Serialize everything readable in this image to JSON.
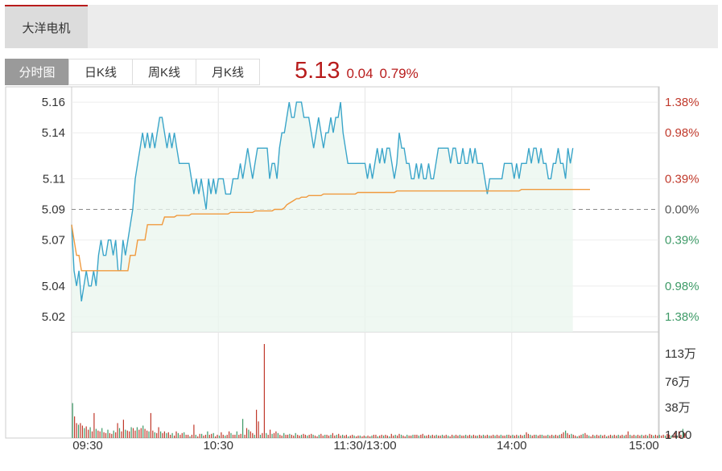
{
  "stock_tab": {
    "name": "大洋电机"
  },
  "tabs": [
    {
      "label": "分时图",
      "active": true
    },
    {
      "label": "日K线",
      "active": false
    },
    {
      "label": "周K线",
      "active": false
    },
    {
      "label": "月K线",
      "active": false
    }
  ],
  "quote": {
    "price": "5.13",
    "change": "0.04",
    "change_pct": "0.79%"
  },
  "colors": {
    "up": "#c0392b",
    "down": "#3e9a67",
    "price_line": "#3aa5c9",
    "avg_line": "#f09a3e",
    "accent": "#b81c1c"
  },
  "chart_data": {
    "type": "line",
    "time_axis": [
      "09:30",
      "10:30",
      "11:30/13:00",
      "14:00",
      "15:00"
    ],
    "price_ticks": [
      "5.16",
      "5.14",
      "5.11",
      "5.09",
      "5.07",
      "5.04",
      "5.02"
    ],
    "pct_ticks": [
      "1.38%",
      "0.98%",
      "0.39%",
      "0.00%",
      "0.39%",
      "0.98%",
      "1.38%"
    ],
    "volume_ticks": [
      "113万",
      "76万",
      "38万",
      "1400"
    ],
    "prev_close": 5.09,
    "ylim": [
      5.01,
      5.17
    ],
    "volume_max": 1130000,
    "price_series": [
      5.08,
      5.05,
      5.04,
      5.05,
      5.03,
      5.04,
      5.05,
      5.04,
      5.04,
      5.05,
      5.04,
      5.06,
      5.07,
      5.06,
      5.06,
      5.07,
      5.07,
      5.06,
      5.07,
      5.05,
      5.05,
      5.07,
      5.06,
      5.07,
      5.08,
      5.09,
      5.11,
      5.12,
      5.13,
      5.14,
      5.13,
      5.14,
      5.13,
      5.14,
      5.13,
      5.14,
      5.15,
      5.15,
      5.14,
      5.13,
      5.14,
      5.13,
      5.14,
      5.13,
      5.12,
      5.12,
      5.12,
      5.12,
      5.12,
      5.11,
      5.1,
      5.11,
      5.1,
      5.11,
      5.1,
      5.09,
      5.11,
      5.1,
      5.11,
      5.1,
      5.11,
      5.11,
      5.11,
      5.1,
      5.1,
      5.1,
      5.11,
      5.11,
      5.11,
      5.12,
      5.11,
      5.12,
      5.13,
      5.12,
      5.11,
      5.12,
      5.13,
      5.13,
      5.13,
      5.13,
      5.13,
      5.11,
      5.12,
      5.12,
      5.11,
      5.13,
      5.14,
      5.14,
      5.15,
      5.16,
      5.15,
      5.15,
      5.16,
      5.16,
      5.16,
      5.15,
      5.15,
      5.15,
      5.14,
      5.13,
      5.14,
      5.15,
      5.14,
      5.13,
      5.14,
      5.14,
      5.15,
      5.14,
      5.15,
      5.15,
      5.16,
      5.14,
      5.13,
      5.12,
      5.12,
      5.12,
      5.12,
      5.12,
      5.12,
      5.12,
      5.12,
      5.11,
      5.12,
      5.11,
      5.12,
      5.13,
      5.12,
      5.13,
      5.12,
      5.13,
      5.13,
      5.12,
      5.11,
      5.12,
      5.14,
      5.13,
      5.13,
      5.12,
      5.12,
      5.11,
      5.11,
      5.12,
      5.11,
      5.12,
      5.11,
      5.11,
      5.12,
      5.11,
      5.11,
      5.12,
      5.13,
      5.13,
      5.13,
      5.13,
      5.13,
      5.12,
      5.13,
      5.13,
      5.12,
      5.12,
      5.13,
      5.12,
      5.12,
      5.13,
      5.12,
      5.13,
      5.12,
      5.12,
      5.12,
      5.11,
      5.1,
      5.11,
      5.11,
      5.11,
      5.11,
      5.11,
      5.11,
      5.12,
      5.12,
      5.12,
      5.12,
      5.11,
      5.12,
      5.11,
      5.12,
      5.12,
      5.12,
      5.13,
      5.12,
      5.13,
      5.13,
      5.12,
      5.13,
      5.12,
      5.12,
      5.11,
      5.11,
      5.12,
      5.12,
      5.13,
      5.12,
      5.12,
      5.11,
      5.13,
      5.12,
      5.13
    ],
    "avg_series": [
      5.08,
      5.07,
      5.06,
      5.06,
      5.05,
      5.05,
      5.05,
      5.05,
      5.05,
      5.05,
      5.05,
      5.05,
      5.05,
      5.05,
      5.05,
      5.05,
      5.05,
      5.05,
      5.05,
      5.05,
      5.05,
      5.05,
      5.05,
      5.05,
      5.06,
      5.06,
      5.06,
      5.07,
      5.07,
      5.07,
      5.07,
      5.08,
      5.08,
      5.08,
      5.08,
      5.08,
      5.08,
      5.08,
      5.085,
      5.085,
      5.085,
      5.085,
      5.085,
      5.086,
      5.086,
      5.086,
      5.086,
      5.086,
      5.086,
      5.087,
      5.087,
      5.087,
      5.087,
      5.087,
      5.087,
      5.087,
      5.087,
      5.087,
      5.087,
      5.087,
      5.087,
      5.087,
      5.087,
      5.087,
      5.087,
      5.088,
      5.088,
      5.088,
      5.088,
      5.088,
      5.088,
      5.088,
      5.088,
      5.088,
      5.088,
      5.089,
      5.089,
      5.089,
      5.089,
      5.089,
      5.089,
      5.089,
      5.089,
      5.09,
      5.09,
      5.09,
      5.09,
      5.091,
      5.093,
      5.094,
      5.095,
      5.096,
      5.097,
      5.097,
      5.098,
      5.098,
      5.098,
      5.099,
      5.099,
      5.099,
      5.099,
      5.099,
      5.099,
      5.1,
      5.1,
      5.1,
      5.1,
      5.1,
      5.1,
      5.1,
      5.1,
      5.1,
      5.1,
      5.1,
      5.1,
      5.1,
      5.1,
      5.101,
      5.101,
      5.101,
      5.101,
      5.101,
      5.101,
      5.101,
      5.101,
      5.101,
      5.101,
      5.101,
      5.101,
      5.101,
      5.101,
      5.101,
      5.101,
      5.102,
      5.102,
      5.102,
      5.102,
      5.102,
      5.102,
      5.102,
      5.102,
      5.102,
      5.102,
      5.102,
      5.102,
      5.102,
      5.102,
      5.102,
      5.102,
      5.102,
      5.102,
      5.102,
      5.102,
      5.102,
      5.102,
      5.102,
      5.102,
      5.102,
      5.102,
      5.102,
      5.102,
      5.102,
      5.102,
      5.102,
      5.102,
      5.102,
      5.102,
      5.102,
      5.102,
      5.102,
      5.102,
      5.102,
      5.102,
      5.102,
      5.102,
      5.102,
      5.102,
      5.102,
      5.102,
      5.102,
      5.102,
      5.102,
      5.102,
      5.102,
      5.103,
      5.103,
      5.103,
      5.103,
      5.103,
      5.103,
      5.103,
      5.103,
      5.103,
      5.103,
      5.103,
      5.103,
      5.103,
      5.103,
      5.103,
      5.103,
      5.103,
      5.103,
      5.103,
      5.103,
      5.103,
      5.103,
      5.103,
      5.103,
      5.103,
      5.103,
      5.103,
      5.103,
      5.103
    ],
    "volume_series": [
      420,
      260,
      180,
      160,
      180,
      150,
      120,
      140,
      100,
      130,
      80,
      300,
      110,
      90,
      80,
      120,
      70,
      60,
      100,
      60,
      50,
      90,
      70,
      180,
      120,
      80,
      220,
      100,
      90,
      80,
      130,
      120,
      90,
      130,
      100,
      120,
      150,
      110,
      90,
      80,
      300,
      90,
      70,
      60,
      130,
      80,
      60,
      80,
      60,
      70,
      40,
      60,
      30,
      80,
      60,
      40,
      60,
      70,
      40,
      40,
      20,
      40,
      160,
      40,
      20,
      50,
      50,
      30,
      40,
      80,
      40,
      50,
      60,
      20,
      40,
      30,
      70,
      40,
      30,
      40,
      80,
      60,
      40,
      40,
      80,
      40,
      50,
      230,
      40,
      120,
      100,
      80,
      60,
      40,
      340,
      200,
      40,
      60,
      1130,
      60,
      40,
      100,
      50,
      60,
      80,
      60,
      40,
      30,
      60,
      40,
      40,
      50,
      40,
      30,
      60,
      40,
      30,
      40,
      50,
      40,
      30,
      40,
      50,
      40,
      30,
      20,
      40,
      50,
      30,
      40,
      40,
      30,
      40,
      60,
      30,
      40,
      50,
      30,
      40,
      30,
      40,
      20,
      30,
      40,
      30,
      20,
      30,
      30,
      20,
      30,
      20,
      30,
      20,
      30,
      40,
      40,
      20,
      30,
      40,
      30,
      40,
      30,
      20,
      50,
      30,
      40,
      30,
      50,
      40,
      30,
      20,
      40,
      30,
      30,
      40,
      40,
      40,
      30,
      40,
      50,
      30,
      30,
      40,
      30,
      40,
      30,
      40,
      30,
      30,
      40,
      30,
      40,
      30,
      20,
      40,
      30,
      40,
      30,
      40,
      30,
      30,
      40,
      30,
      40,
      30,
      40,
      30,
      30,
      40,
      30,
      40,
      30,
      40,
      30,
      30,
      40,
      30,
      40,
      30,
      40,
      30,
      30,
      40,
      40,
      30,
      40,
      30,
      40,
      30,
      40,
      30,
      40,
      70,
      50,
      40,
      30,
      40,
      40,
      30,
      40,
      40,
      30,
      30,
      40,
      30,
      40,
      30,
      40,
      30,
      40,
      50,
      70,
      90,
      60,
      40,
      50,
      40,
      30,
      20,
      30,
      40,
      50,
      60,
      40,
      30,
      20,
      40,
      30,
      40,
      30,
      40,
      30,
      40,
      20,
      30,
      40,
      30,
      40,
      30,
      40,
      30,
      40,
      30,
      40,
      80,
      40,
      30,
      40,
      30,
      40,
      30,
      40,
      30,
      40,
      30,
      50,
      40,
      30,
      40,
      30,
      40,
      30,
      40,
      30,
      50,
      40,
      30,
      40,
      70,
      30,
      80,
      40,
      110,
      60
    ]
  }
}
